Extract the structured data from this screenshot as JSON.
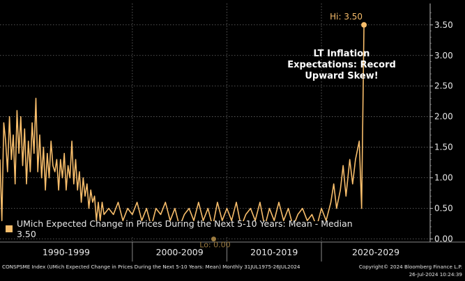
{
  "chart_data": {
    "type": "line",
    "title": "LT Inflation Expectations: Record Upward Skew!",
    "series": [
      {
        "name": "UMich Expected Change in Prices During the Next 5-10 Years: Mean - Median 3.50",
        "color": "#f7bd6b",
        "x": [
          1986.0,
          1986.2,
          1986.4,
          1986.6,
          1986.8,
          1987.0,
          1987.2,
          1987.4,
          1987.6,
          1987.8,
          1988.0,
          1988.2,
          1988.4,
          1988.6,
          1988.8,
          1989.0,
          1989.2,
          1989.4,
          1989.6,
          1989.8,
          1990.0,
          1990.2,
          1990.4,
          1990.6,
          1990.8,
          1991.0,
          1991.2,
          1991.4,
          1991.6,
          1991.8,
          1992.0,
          1992.2,
          1992.4,
          1992.6,
          1992.8,
          1993.0,
          1993.2,
          1993.4,
          1993.6,
          1993.8,
          1994.0,
          1994.2,
          1994.4,
          1994.6,
          1994.8,
          1995.0,
          1995.2,
          1995.4,
          1995.6,
          1995.8,
          1996.0,
          1996.2,
          1996.4,
          1996.6,
          1996.8,
          1997.0,
          1997.5,
          1998.0,
          1998.5,
          1999.0,
          1999.5,
          2000.0,
          2000.5,
          2001.0,
          2001.5,
          2002.0,
          2002.5,
          2003.0,
          2003.5,
          2004.0,
          2004.5,
          2005.0,
          2005.5,
          2006.0,
          2006.5,
          2007.0,
          2007.5,
          2008.0,
          2008.5,
          2009.0,
          2009.5,
          2010.0,
          2010.5,
          2011.0,
          2011.5,
          2012.0,
          2012.5,
          2013.0,
          2013.5,
          2014.0,
          2014.5,
          2015.0,
          2015.5,
          2016.0,
          2016.5,
          2017.0,
          2017.5,
          2018.0,
          2018.5,
          2019.0,
          2019.5,
          2020.0,
          2020.5,
          2021.0,
          2021.3,
          2021.6,
          2022.0,
          2022.3,
          2022.6,
          2023.0,
          2023.3,
          2023.6,
          2024.0,
          2024.25,
          2024.5
        ],
        "values": [
          1.3,
          0.3,
          1.9,
          1.6,
          1.1,
          2.0,
          1.3,
          1.7,
          0.9,
          2.1,
          1.4,
          2.0,
          1.2,
          1.8,
          0.9,
          1.6,
          1.1,
          1.9,
          1.4,
          2.3,
          1.1,
          1.7,
          1.0,
          1.5,
          0.8,
          1.4,
          1.0,
          1.6,
          1.2,
          1.1,
          1.3,
          0.8,
          1.3,
          1.0,
          1.4,
          0.8,
          1.2,
          1.0,
          1.6,
          0.9,
          1.3,
          0.8,
          1.1,
          0.6,
          1.0,
          0.7,
          0.9,
          0.5,
          0.8,
          0.6,
          0.7,
          0.3,
          0.6,
          0.3,
          0.6,
          0.4,
          0.5,
          0.4,
          0.6,
          0.3,
          0.5,
          0.4,
          0.6,
          0.3,
          0.5,
          0.2,
          0.5,
          0.4,
          0.6,
          0.3,
          0.5,
          0.2,
          0.4,
          0.5,
          0.3,
          0.6,
          0.3,
          0.5,
          0.2,
          0.6,
          0.3,
          0.5,
          0.3,
          0.6,
          0.2,
          0.4,
          0.5,
          0.3,
          0.6,
          0.2,
          0.5,
          0.3,
          0.6,
          0.3,
          0.5,
          0.2,
          0.4,
          0.5,
          0.3,
          0.4,
          0.2,
          0.5,
          0.3,
          0.6,
          0.9,
          0.5,
          0.8,
          1.2,
          0.7,
          1.3,
          0.9,
          1.3,
          1.6,
          0.5,
          3.5
        ]
      }
    ],
    "xlabel": "",
    "ylabel": "",
    "xlim": [
      1986,
      2031.5
    ],
    "ylim": [
      -0.05,
      3.85
    ],
    "yticks": [
      0.0,
      0.5,
      1.0,
      1.5,
      2.0,
      2.5,
      3.0,
      3.5
    ],
    "ytick_labels": [
      "0.00",
      "0.50",
      "1.00",
      "1.50",
      "2.00",
      "2.50",
      "3.00",
      "3.50"
    ],
    "x_bands": [
      {
        "label": "1990-1999",
        "start": 1986,
        "end": 2000
      },
      {
        "label": "2000-2009",
        "start": 2000,
        "end": 2010
      },
      {
        "label": "2010-2019",
        "start": 2010,
        "end": 2020
      },
      {
        "label": "2020-2029",
        "start": 2020,
        "end": 2031.5
      }
    ],
    "hi_label": "Hi: 3.50",
    "hi_point": {
      "x": 2024.5,
      "y": 3.5
    },
    "lo_label": "Lo: 0.00",
    "lo_point": {
      "x": 2008.6,
      "y": 0.0
    },
    "legend_position": "bottom-left"
  },
  "annotation": {
    "line1": "LT Inflation",
    "line2": "Expectations: Record",
    "line3": "Upward Skew!"
  },
  "legend": {
    "label": "UMich Expected Change in Prices During the Next 5-10 Years: Mean - Median 3.50"
  },
  "footer": {
    "source": "CONSPSME Index (UMich Expected Change in Prices During the Next 5-10 Years: Mean)  Monthly 31JUL1975-26JUL2024",
    "copyright": "Copyright© 2024 Bloomberg Finance L.P.",
    "timestamp": "26-Jul-2024 10:24:39"
  },
  "colors": {
    "line": "#f7bd6b",
    "grid": "#6e6e6e",
    "background": "#000000",
    "text": "#e8e8e8"
  }
}
